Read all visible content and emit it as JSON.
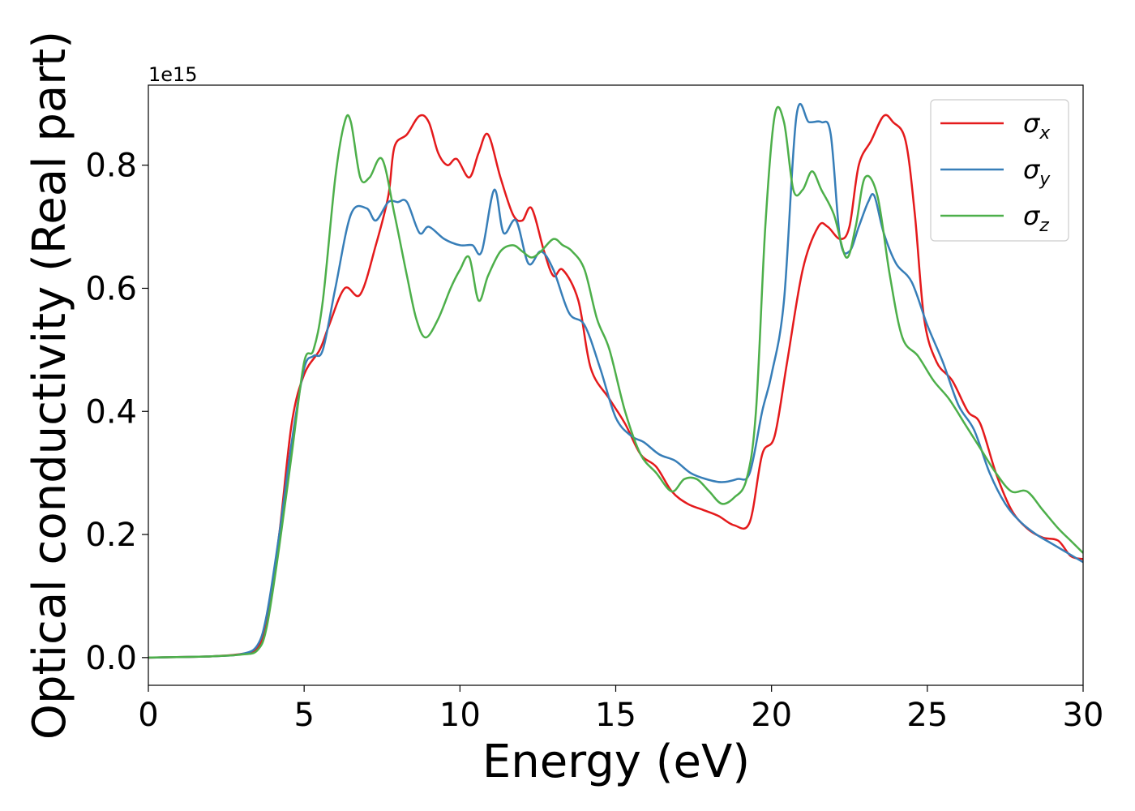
{
  "chart_data": {
    "type": "line",
    "xlabel": "Energy (eV)",
    "ylabel": "Optical conductivity (Real part)",
    "y_offset_text": "1e15",
    "xlim": [
      0,
      30
    ],
    "ylim": [
      -0.045,
      0.93
    ],
    "xticks": [
      0,
      5,
      10,
      15,
      20,
      25,
      30
    ],
    "xtick_labels": [
      "0",
      "5",
      "10",
      "15",
      "20",
      "25",
      "30"
    ],
    "yticks": [
      0.0,
      0.2,
      0.4,
      0.6,
      0.8
    ],
    "ytick_labels": [
      "0.0",
      "0.2",
      "0.4",
      "0.6",
      "0.8"
    ],
    "grid": false,
    "legend_position": "top-right",
    "series": [
      {
        "name": "σx",
        "symbol": "σ",
        "subscript": "x",
        "color": "#e41a1c",
        "x": [
          0,
          2,
          3,
          3.5,
          3.8,
          4.2,
          4.6,
          5.0,
          5.5,
          5.8,
          6.3,
          6.8,
          7.3,
          7.7,
          7.9,
          8.3,
          8.7,
          9.0,
          9.3,
          9.6,
          9.9,
          10.3,
          10.6,
          10.9,
          11.3,
          11.7,
          12.0,
          12.3,
          12.7,
          13.0,
          13.3,
          13.8,
          14.2,
          14.8,
          15.3,
          15.8,
          16.3,
          16.8,
          17.3,
          17.8,
          18.3,
          18.8,
          19.3,
          19.7,
          20.1,
          20.5,
          21.0,
          21.5,
          21.8,
          22.2,
          22.5,
          22.8,
          23.2,
          23.6,
          23.9,
          24.3,
          24.6,
          24.9,
          25.3,
          25.8,
          26.3,
          26.7,
          27.2,
          27.7,
          28.2,
          28.7,
          29.2,
          29.6,
          30
        ],
        "y": [
          0,
          0.002,
          0.006,
          0.015,
          0.06,
          0.2,
          0.38,
          0.46,
          0.5,
          0.54,
          0.6,
          0.59,
          0.67,
          0.75,
          0.83,
          0.85,
          0.88,
          0.87,
          0.82,
          0.8,
          0.81,
          0.78,
          0.82,
          0.85,
          0.78,
          0.72,
          0.71,
          0.73,
          0.66,
          0.62,
          0.63,
          0.58,
          0.47,
          0.42,
          0.38,
          0.33,
          0.31,
          0.27,
          0.25,
          0.24,
          0.23,
          0.215,
          0.22,
          0.33,
          0.36,
          0.48,
          0.63,
          0.7,
          0.7,
          0.68,
          0.7,
          0.8,
          0.84,
          0.88,
          0.87,
          0.84,
          0.72,
          0.55,
          0.48,
          0.45,
          0.4,
          0.38,
          0.3,
          0.24,
          0.21,
          0.195,
          0.19,
          0.165,
          0.16
        ]
      },
      {
        "name": "σy",
        "symbol": "σ",
        "subscript": "y",
        "color": "#377eb8",
        "x": [
          0,
          2,
          3,
          3.5,
          3.8,
          4.2,
          4.6,
          5.0,
          5.3,
          5.6,
          6.0,
          6.5,
          7.0,
          7.3,
          7.7,
          8.0,
          8.3,
          8.7,
          9.0,
          9.5,
          10.0,
          10.4,
          10.7,
          11.1,
          11.4,
          11.8,
          12.2,
          12.6,
          13.0,
          13.5,
          14.0,
          14.5,
          15.0,
          15.5,
          15.9,
          16.4,
          16.9,
          17.4,
          17.9,
          18.4,
          18.9,
          19.3,
          19.7,
          20.0,
          20.4,
          20.8,
          21.2,
          21.6,
          21.9,
          22.2,
          22.5,
          22.8,
          23.1,
          23.3,
          23.6,
          24.0,
          24.5,
          25.0,
          25.5,
          26.0,
          26.5,
          27.0,
          27.5,
          28.0,
          28.5,
          29.0,
          29.5,
          30
        ],
        "y": [
          0,
          0.002,
          0.006,
          0.02,
          0.07,
          0.2,
          0.35,
          0.47,
          0.49,
          0.5,
          0.6,
          0.72,
          0.73,
          0.71,
          0.74,
          0.74,
          0.74,
          0.69,
          0.7,
          0.68,
          0.67,
          0.67,
          0.66,
          0.76,
          0.69,
          0.71,
          0.64,
          0.66,
          0.63,
          0.56,
          0.54,
          0.47,
          0.39,
          0.36,
          0.35,
          0.33,
          0.32,
          0.3,
          0.29,
          0.285,
          0.29,
          0.3,
          0.4,
          0.46,
          0.58,
          0.88,
          0.87,
          0.87,
          0.85,
          0.68,
          0.66,
          0.7,
          0.74,
          0.75,
          0.69,
          0.64,
          0.61,
          0.54,
          0.48,
          0.41,
          0.37,
          0.3,
          0.25,
          0.22,
          0.2,
          0.185,
          0.17,
          0.155
        ]
      },
      {
        "name": "σz",
        "symbol": "σ",
        "subscript": "z",
        "color": "#4daf4a",
        "x": [
          0,
          2,
          3,
          3.5,
          3.8,
          4.2,
          4.6,
          5.0,
          5.3,
          5.6,
          6.0,
          6.3,
          6.5,
          6.8,
          7.1,
          7.5,
          7.9,
          8.3,
          8.6,
          8.9,
          9.3,
          9.7,
          10.0,
          10.3,
          10.6,
          10.9,
          11.3,
          11.7,
          12.0,
          12.3,
          12.6,
          13.0,
          13.3,
          13.6,
          14.0,
          14.4,
          14.8,
          15.3,
          15.8,
          16.3,
          16.8,
          17.2,
          17.6,
          18.0,
          18.4,
          18.8,
          19.2,
          19.5,
          19.8,
          20.1,
          20.4,
          20.7,
          21.0,
          21.3,
          21.6,
          22.0,
          22.4,
          22.7,
          23.0,
          23.4,
          23.8,
          24.2,
          24.7,
          25.2,
          25.7,
          26.2,
          26.7,
          27.2,
          27.7,
          28.2,
          28.7,
          29.2,
          29.6,
          30
        ],
        "y": [
          0,
          0.002,
          0.005,
          0.012,
          0.05,
          0.18,
          0.33,
          0.48,
          0.5,
          0.58,
          0.78,
          0.87,
          0.87,
          0.78,
          0.78,
          0.81,
          0.72,
          0.62,
          0.55,
          0.52,
          0.55,
          0.6,
          0.63,
          0.65,
          0.58,
          0.62,
          0.66,
          0.67,
          0.66,
          0.65,
          0.66,
          0.68,
          0.67,
          0.66,
          0.63,
          0.55,
          0.5,
          0.4,
          0.33,
          0.3,
          0.27,
          0.29,
          0.29,
          0.27,
          0.25,
          0.26,
          0.29,
          0.4,
          0.7,
          0.88,
          0.87,
          0.76,
          0.76,
          0.79,
          0.76,
          0.72,
          0.65,
          0.7,
          0.78,
          0.75,
          0.62,
          0.52,
          0.49,
          0.45,
          0.42,
          0.38,
          0.34,
          0.3,
          0.27,
          0.27,
          0.24,
          0.21,
          0.19,
          0.17
        ]
      }
    ]
  }
}
